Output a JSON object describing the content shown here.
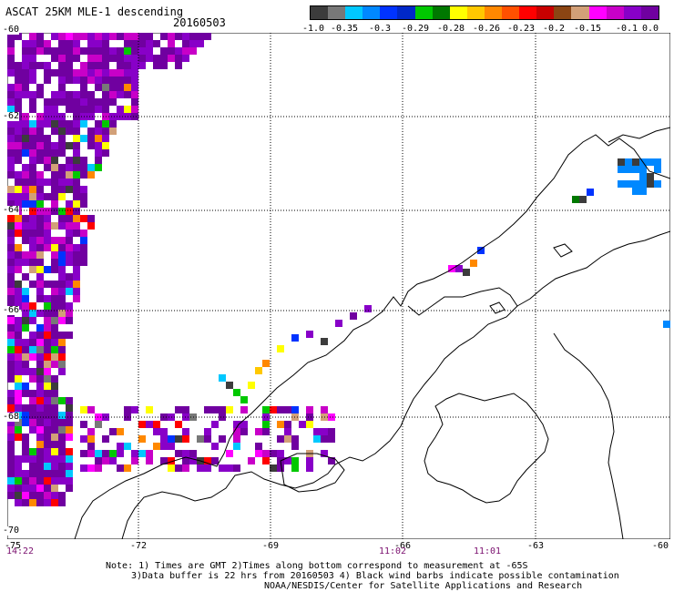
{
  "header": {
    "title": "ASCAT 25KM MLE-1 descending",
    "date": "20160503"
  },
  "colorbar": {
    "colors": [
      "#3c3c3c",
      "#787878",
      "#00c8ff",
      "#0088ff",
      "#0033ff",
      "#0028c8",
      "#00c800",
      "#007800",
      "#ffff00",
      "#ffc800",
      "#ff8800",
      "#ff5000",
      "#ff0000",
      "#c80000",
      "#8b4513",
      "#d2a078",
      "#ff00ff",
      "#c800c8",
      "#8800c8",
      "#7000a0"
    ],
    "ticks": [
      "-1.0",
      "-0.35",
      "-0.3",
      "-0.29",
      "-0.28",
      "-0.26",
      "-0.23",
      "-0.2",
      "-0.15",
      "-0.1",
      "0.0"
    ]
  },
  "axes": {
    "xticks": [
      "-75",
      "-72",
      "-69",
      "-66",
      "-63",
      "-60"
    ],
    "yticks": [
      "-60",
      "-62",
      "-64",
      "-66",
      "-68",
      "-70"
    ]
  },
  "times": [
    "14:22",
    "11:02",
    "11:01"
  ],
  "notes": [
    "Note: 1) Times are GMT 2)Times along bottom correspond to measurement at -65S",
    "3)Data buffer is 22 hrs from 20160503 4) Black wind barbs indicate possible contamination",
    "NOAA/NESDIS/Center for Satellite Applications and Research"
  ]
}
